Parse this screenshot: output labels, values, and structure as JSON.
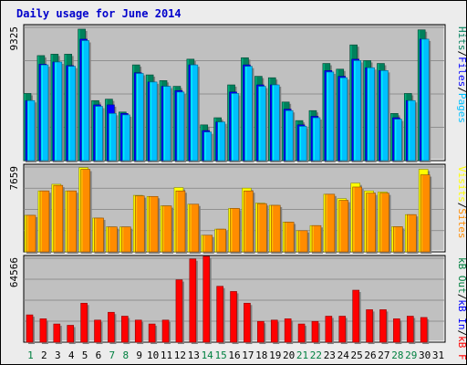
{
  "title": "Daily usage for June 2014",
  "colors": {
    "title": "#0000cc",
    "hits": "#00805c",
    "files": "#0000ff",
    "pages": "#00c0ff",
    "visits": "#ffff00",
    "sites": "#ff8c00",
    "kb_f": "#ff0000",
    "kb_in": "#0000ff",
    "kb_out": "#008040",
    "weekend": "#008040",
    "weekday": "#000000",
    "panel_bg": "#c0c0c0"
  },
  "legends": {
    "top": [
      "Hits",
      "/",
      "Files",
      "/",
      "Pages"
    ],
    "mid": [
      "Visits",
      "/",
      "Sites"
    ],
    "bot": [
      "kB Out",
      "/",
      "kB In",
      "/",
      "kB F"
    ]
  },
  "chart_data": {
    "type": "bar",
    "title": "Daily usage for June 2014",
    "days": [
      "1",
      "2",
      "3",
      "4",
      "5",
      "6",
      "7",
      "8",
      "9",
      "10",
      "11",
      "12",
      "13",
      "14",
      "15",
      "16",
      "17",
      "18",
      "19",
      "20",
      "21",
      "22",
      "23",
      "24",
      "25",
      "26",
      "27",
      "28",
      "29",
      "30",
      "31"
    ],
    "weekend_days": [
      1,
      7,
      8,
      14,
      15,
      21,
      22,
      28,
      29
    ],
    "panels": [
      {
        "name": "hits-files-pages",
        "max_label": "9325",
        "ymax": 9325,
        "series": [
          {
            "name": "Hits",
            "values": [
              4700,
              7350,
              7450,
              7450,
              9200,
              4200,
              4300,
              3400,
              6700,
              6000,
              5600,
              5200,
              7100,
              2500,
              3000,
              5300,
              7200,
              5900,
              5800,
              4100,
              2800,
              3500,
              6800,
              6400,
              8100,
              7000,
              6800,
              3300,
              4700,
              9150,
              0
            ]
          },
          {
            "name": "Files",
            "values": [
              4200,
              6750,
              6900,
              6650,
              8500,
              3900,
              3900,
              3300,
              6150,
              5500,
              5200,
              4900,
              6700,
              2100,
              2700,
              4800,
              6700,
              5300,
              5300,
              3600,
              2500,
              3100,
              6300,
              5900,
              7100,
              6500,
              6300,
              3000,
              4200,
              8500,
              0
            ]
          },
          {
            "name": "Pages",
            "values": [
              4200,
              6700,
              6900,
              6600,
              8400,
              3800,
              3300,
              3200,
              6100,
              5500,
              5200,
              4800,
              6700,
              2000,
              2700,
              4700,
              6600,
              5200,
              5300,
              3500,
              2400,
              3000,
              6200,
              5800,
              7000,
              6500,
              6300,
              2900,
              4200,
              8500,
              0
            ]
          }
        ]
      },
      {
        "name": "visits-sites",
        "max_label": "7659",
        "ymax": 7659,
        "series": [
          {
            "name": "Visits",
            "values": [
              3300,
              5500,
              6100,
              5500,
              7600,
              3050,
              2250,
              2250,
              5100,
              5000,
              4150,
              5800,
              4300,
              1500,
              2050,
              3920,
              5750,
              4400,
              4200,
              2680,
              1910,
              2370,
              5200,
              4800,
              6200,
              5500,
              5400,
              2270,
              3360,
              7450,
              0
            ]
          },
          {
            "name": "Sites",
            "values": [
              3300,
              5500,
              6000,
              5500,
              7450,
              3050,
              2250,
              2250,
              5050,
              5000,
              4150,
              5500,
              4300,
              1500,
              2050,
              3920,
              5500,
              4350,
              4200,
              2680,
              1910,
              2370,
              5200,
              4650,
              5850,
              5300,
              5300,
              2270,
              3360,
              6950,
              0
            ]
          }
        ]
      },
      {
        "name": "kb-f-in-out",
        "max_label": "64566",
        "ymax": 64566,
        "series": [
          {
            "name": "kB F",
            "values": [
              21000,
              18000,
              14000,
              13000,
              30000,
              17000,
              23000,
              20000,
              17000,
              14000,
              17000,
              48000,
              64000,
              66000,
              43000,
              39000,
              30000,
              16000,
              17000,
              18000,
              14000,
              16000,
              20000,
              20000,
              40000,
              25000,
              25000,
              18000,
              20000,
              19000,
              0
            ]
          }
        ]
      }
    ]
  }
}
